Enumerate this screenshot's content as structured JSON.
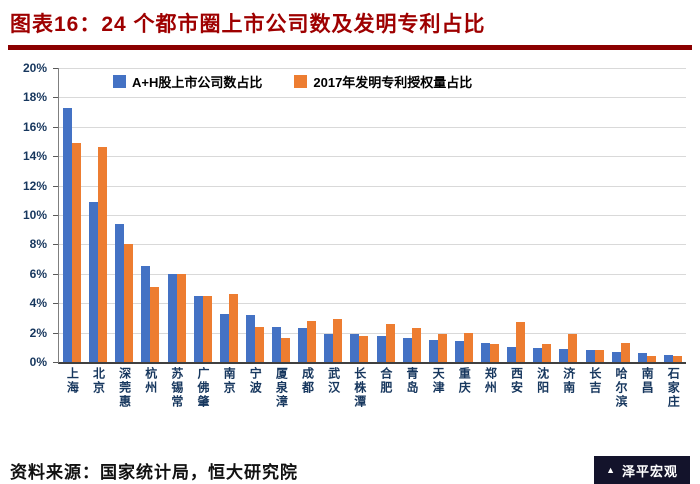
{
  "title": "图表16：24 个都市圈上市公司数及发明专利占比",
  "source": "资料来源：国家统计局，恒大研究院",
  "watermark": "泽平宏观",
  "colors": {
    "series1_blue": "#4472C4",
    "series2_orange": "#ED7D31",
    "title_red": "#9e0000",
    "rule_red": "#8b0000",
    "axis_label_navy": "#17375e",
    "gridline_gray": "#d9d9d9"
  },
  "chart_data": {
    "type": "bar",
    "title": "图表16：24 个都市圈上市公司数及发明专利占比",
    "categories": [
      "上海",
      "北京",
      "深莞惠",
      "杭州",
      "苏锡常",
      "广佛肇",
      "南京",
      "宁波",
      "厦泉漳",
      "成都",
      "武汉",
      "长株潭",
      "合肥",
      "青岛",
      "天津",
      "重庆",
      "郑州",
      "西安",
      "沈阳",
      "济南",
      "长吉",
      "哈尔滨",
      "南昌",
      "石家庄"
    ],
    "series": [
      {
        "name": "A+H股上市公司数占比",
        "color": "#4472C4",
        "values": [
          17.3,
          10.9,
          9.4,
          6.5,
          6.0,
          4.5,
          3.3,
          3.2,
          2.4,
          2.3,
          1.9,
          1.9,
          1.8,
          1.6,
          1.5,
          1.4,
          1.3,
          1.0,
          0.95,
          0.9,
          0.8,
          0.7,
          0.6,
          0.5
        ]
      },
      {
        "name": "2017年发明专利授权量占比",
        "color": "#ED7D31",
        "values": [
          14.9,
          14.6,
          8.0,
          5.1,
          6.0,
          4.5,
          4.6,
          2.4,
          1.6,
          2.8,
          2.9,
          1.8,
          2.6,
          2.3,
          1.9,
          2.0,
          1.2,
          2.7,
          1.2,
          1.9,
          0.8,
          1.3,
          0.4,
          0.4
        ]
      }
    ],
    "xlabel": "",
    "ylabel": "",
    "ylim": [
      0,
      20
    ],
    "ytick_step": 2,
    "ytick_labels": [
      "0%",
      "2%",
      "4%",
      "6%",
      "8%",
      "10%",
      "12%",
      "14%",
      "16%",
      "18%",
      "20%"
    ],
    "grid": true,
    "legend_position": "top-inside"
  }
}
